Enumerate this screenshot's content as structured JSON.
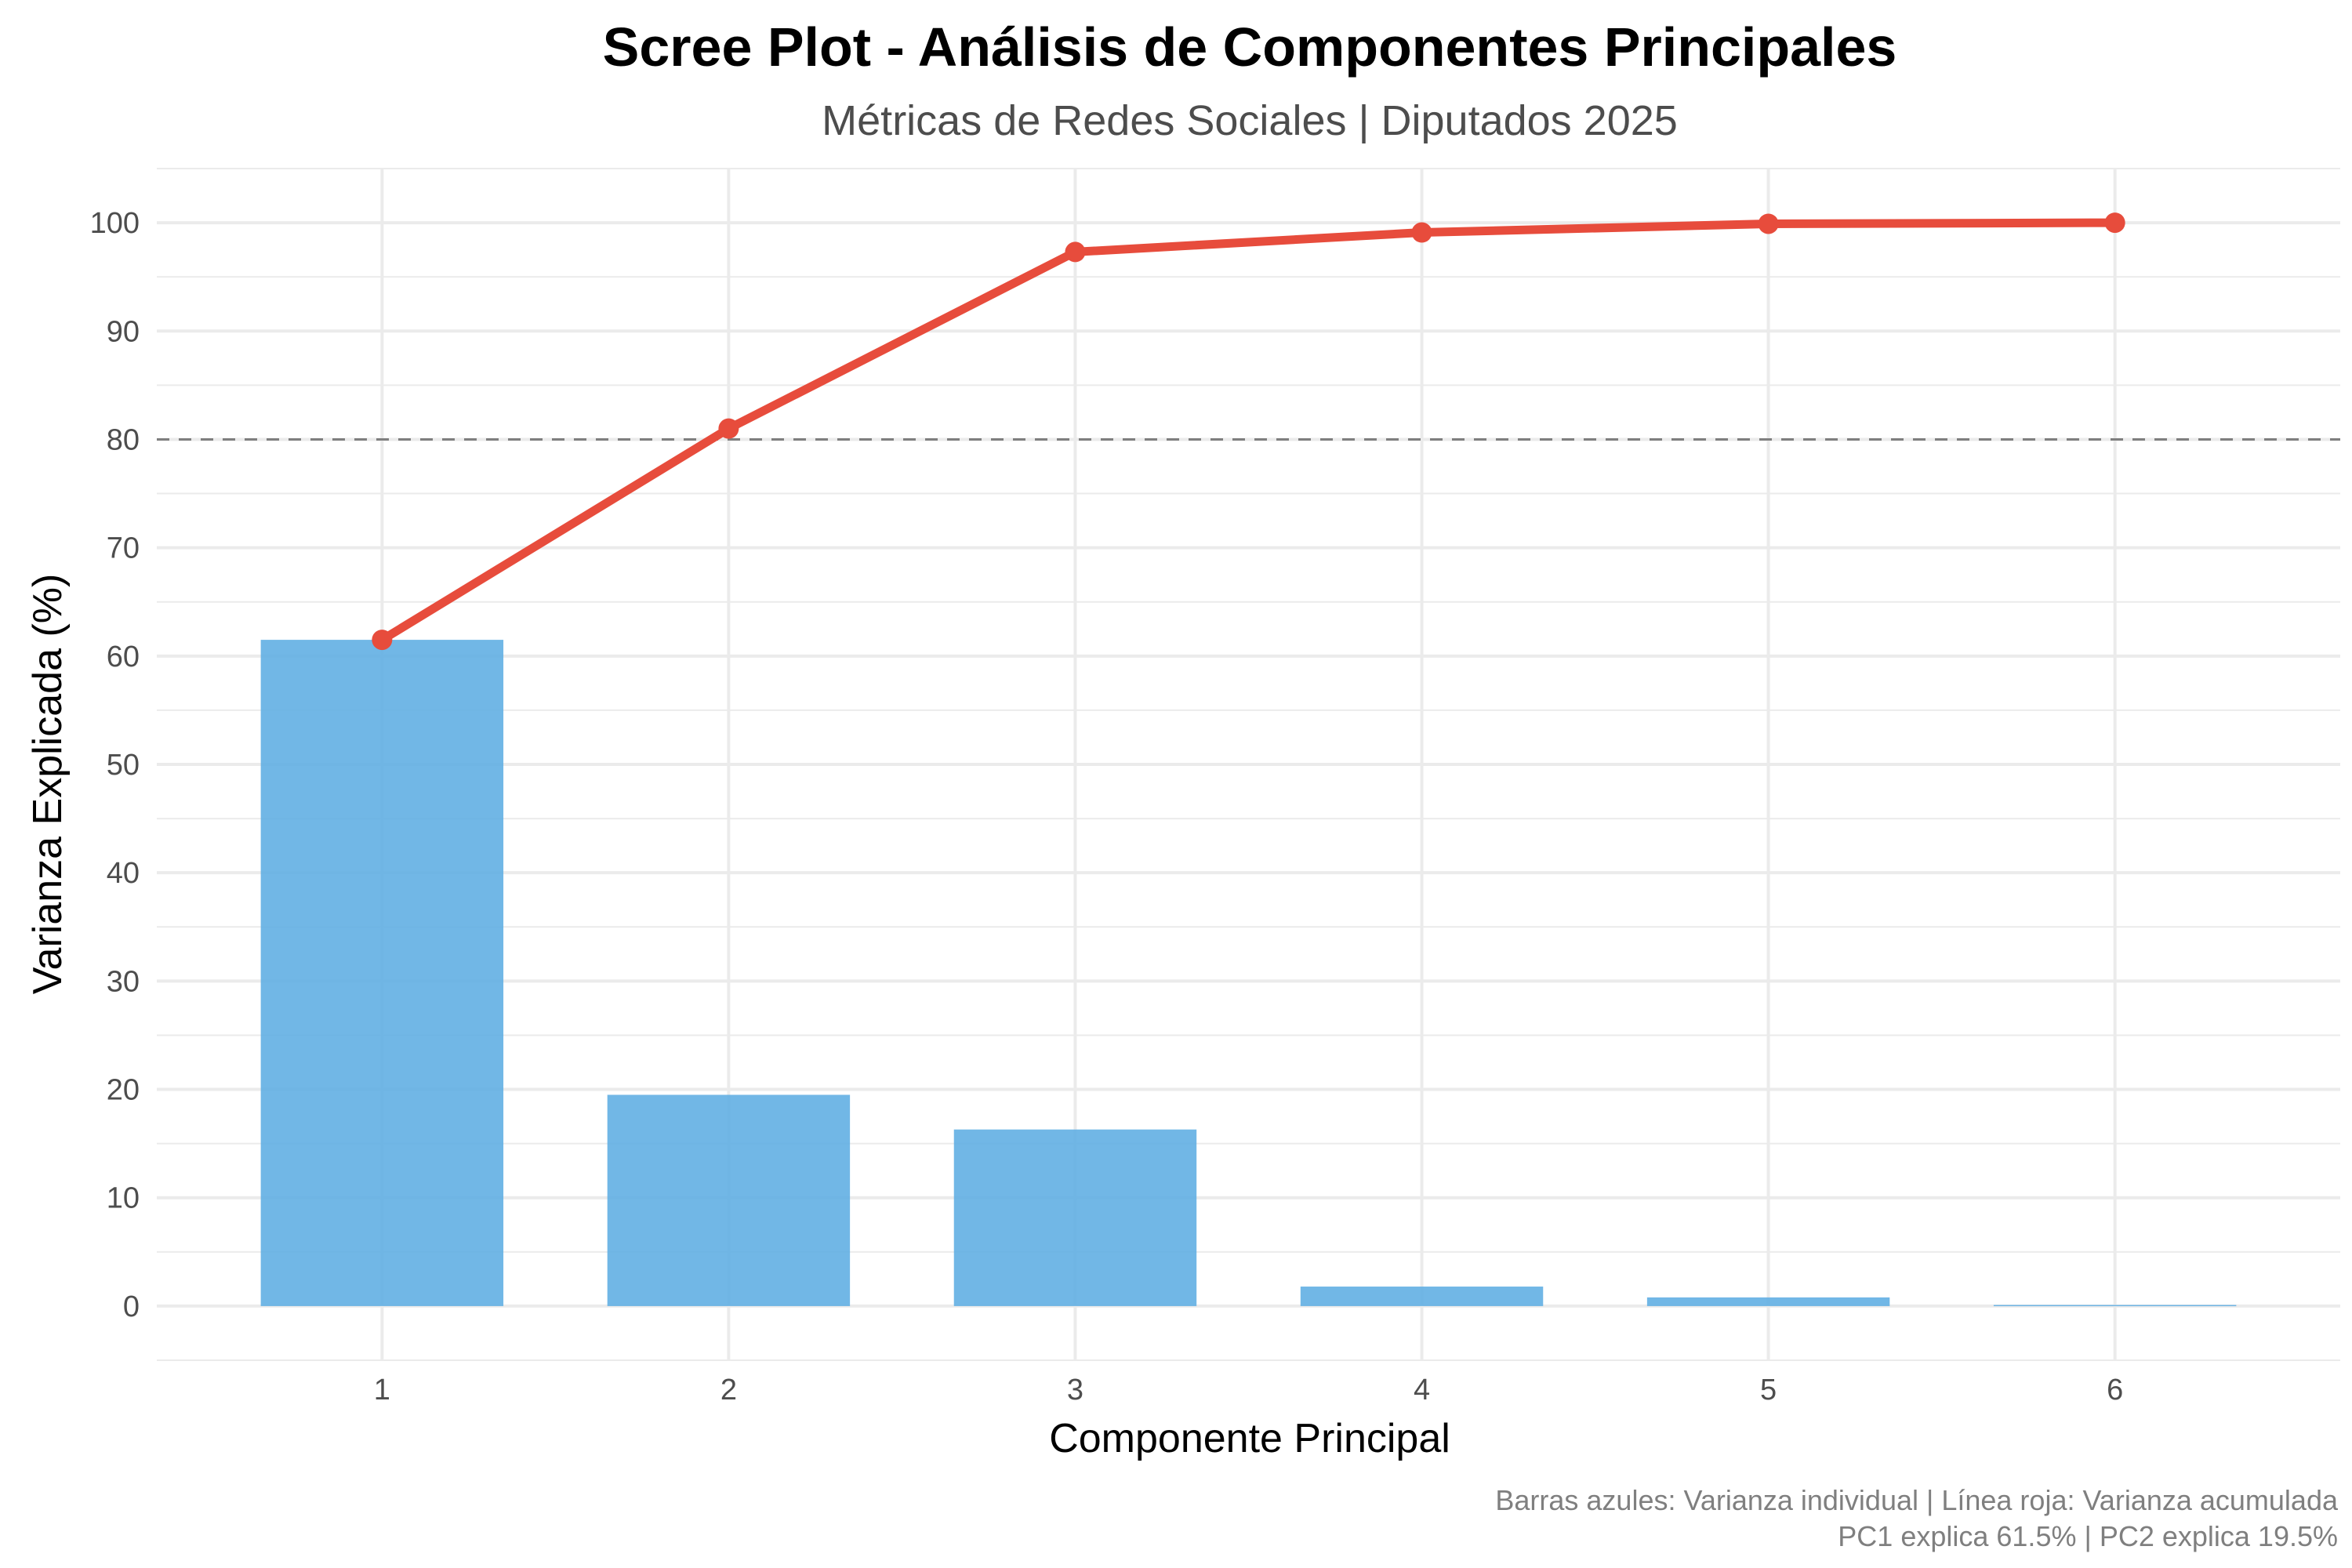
{
  "chart_data": {
    "type": "bar",
    "title": "Scree Plot - Análisis de Componentes Principales",
    "subtitle": "Métricas de Redes Sociales | Diputados 2025",
    "xlabel": "Componente Principal",
    "ylabel": "Varianza Explicada (%)",
    "categories": [
      "1",
      "2",
      "3",
      "4",
      "5",
      "6"
    ],
    "ylim": [
      -5,
      105
    ],
    "yticks": [
      "0",
      "10",
      "20",
      "30",
      "40",
      "50",
      "60",
      "70",
      "80",
      "90",
      "100"
    ],
    "series": [
      {
        "kind": "bar",
        "values": [
          61.5,
          19.5,
          16.3,
          1.8,
          0.8,
          0.1
        ]
      },
      {
        "kind": "line",
        "values": [
          61.5,
          81.0,
          97.3,
          99.1,
          99.9,
          100.0
        ]
      }
    ],
    "reference_line": {
      "y": 80,
      "style": "dashed"
    },
    "grid": true,
    "legend": "none",
    "caption_lines": [
      "Barras azules: Varianza individual | Línea roja: Varianza acumulada",
      "PC1 explica 61.5% | PC2 explica 19.5%"
    ],
    "colors": {
      "bar": "#5dade2",
      "line": "#e74c3c",
      "reference": "#7f7f7f",
      "grid": "#ebebeb"
    }
  }
}
